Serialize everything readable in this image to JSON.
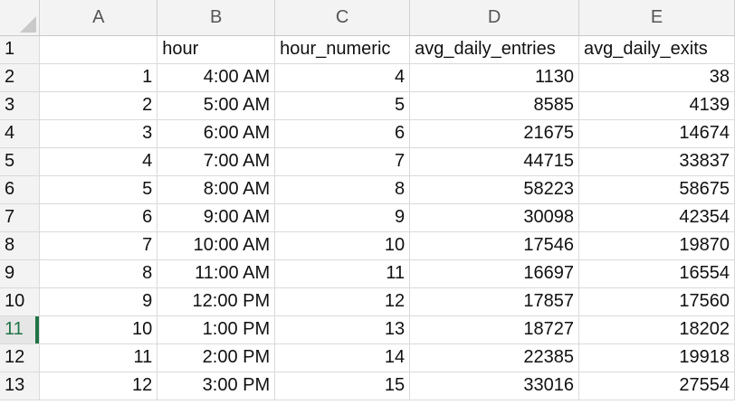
{
  "columns": [
    "A",
    "B",
    "C",
    "D",
    "E"
  ],
  "active_row": "11",
  "rows": [
    {
      "row": "1",
      "cells": [
        "",
        "hour",
        "hour_numeric",
        "avg_daily_entries",
        "avg_daily_exits"
      ]
    },
    {
      "row": "2",
      "cells": [
        "1",
        "4:00 AM",
        "4",
        "1130",
        "38"
      ]
    },
    {
      "row": "3",
      "cells": [
        "2",
        "5:00 AM",
        "5",
        "8585",
        "4139"
      ]
    },
    {
      "row": "4",
      "cells": [
        "3",
        "6:00 AM",
        "6",
        "21675",
        "14674"
      ]
    },
    {
      "row": "5",
      "cells": [
        "4",
        "7:00 AM",
        "7",
        "44715",
        "33837"
      ]
    },
    {
      "row": "6",
      "cells": [
        "5",
        "8:00 AM",
        "8",
        "58223",
        "58675"
      ]
    },
    {
      "row": "7",
      "cells": [
        "6",
        "9:00 AM",
        "9",
        "30098",
        "42354"
      ]
    },
    {
      "row": "8",
      "cells": [
        "7",
        "10:00 AM",
        "10",
        "17546",
        "19870"
      ]
    },
    {
      "row": "9",
      "cells": [
        "8",
        "11:00 AM",
        "11",
        "16697",
        "16554"
      ]
    },
    {
      "row": "10",
      "cells": [
        "9",
        "12:00 PM",
        "12",
        "17857",
        "17560"
      ]
    },
    {
      "row": "11",
      "cells": [
        "10",
        "1:00 PM",
        "13",
        "18727",
        "18202"
      ]
    },
    {
      "row": "12",
      "cells": [
        "11",
        "2:00 PM",
        "14",
        "22385",
        "19918"
      ]
    },
    {
      "row": "13",
      "cells": [
        "12",
        "3:00 PM",
        "15",
        "33016",
        "27554"
      ]
    }
  ],
  "colors": {
    "accent": "#217346",
    "header_bg": "#f3f3f3",
    "grid_line": "#dadada"
  }
}
